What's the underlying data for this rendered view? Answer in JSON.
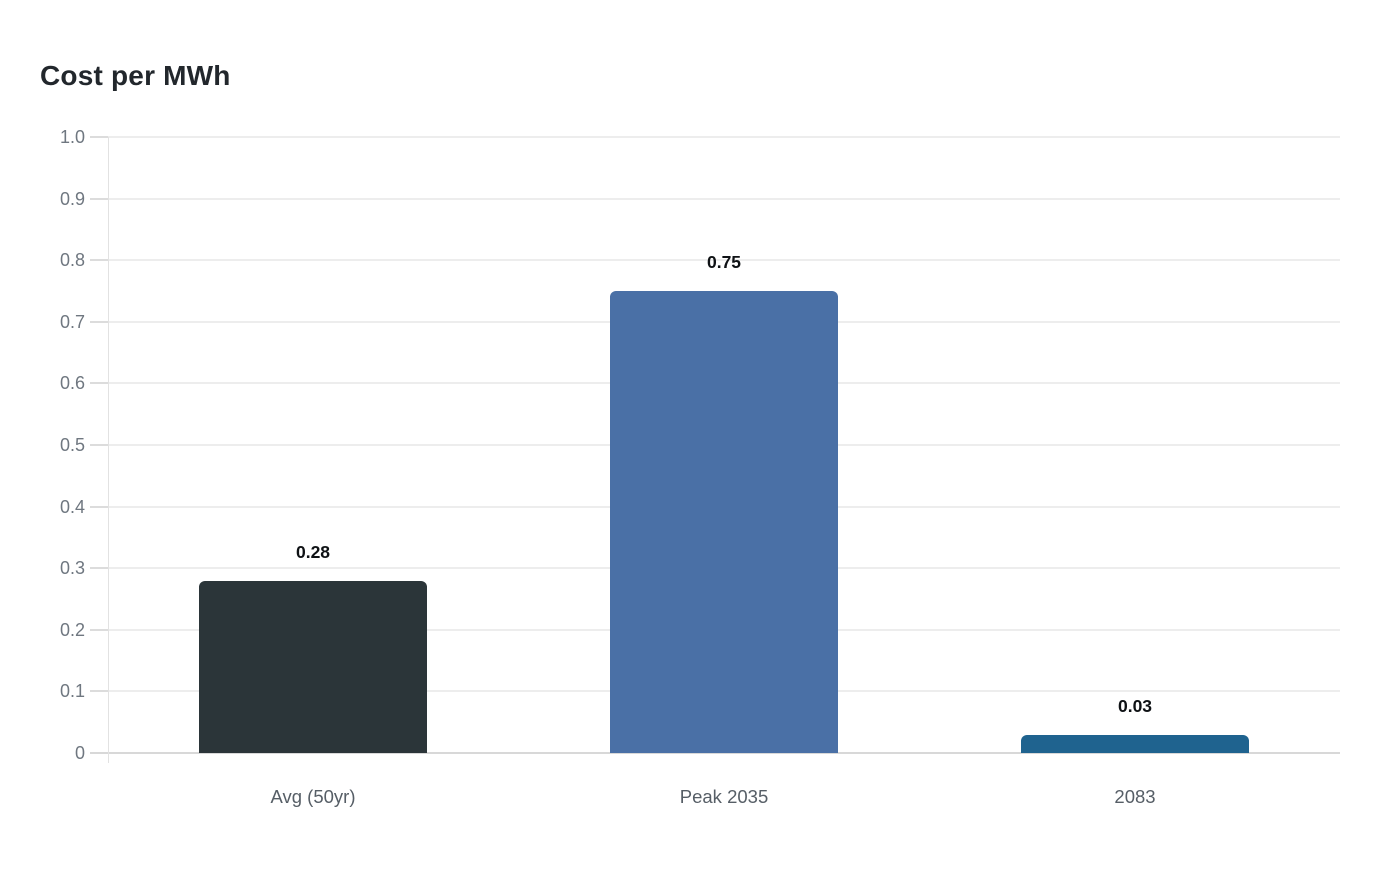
{
  "page": {
    "background_color": "#ffffff"
  },
  "chart_data": {
    "type": "bar",
    "title": "Cost per MWh",
    "categories": [
      "Avg (50yr)",
      "Peak 2035",
      "2083"
    ],
    "values": [
      0.28,
      0.75,
      0.03
    ],
    "value_labels": [
      "0.28",
      "0.75",
      "0.03"
    ],
    "bar_colors": [
      "#2b3539",
      "#4a70a6",
      "#1f638f"
    ],
    "xlabel": "",
    "ylabel": "",
    "ylim": [
      0,
      1.0
    ],
    "yticks": [
      1.0,
      0.9,
      0.8,
      0.7,
      0.6,
      0.5,
      0.4,
      0.3,
      0.2,
      0.1,
      0
    ],
    "ytick_labels": [
      "1.0",
      "0.9",
      "0.8",
      "0.7",
      "0.6",
      "0.5",
      "0.4",
      "0.3",
      "0.2",
      "0.1",
      "0"
    ],
    "grid": true,
    "legend": false,
    "bar_label_position": "above"
  },
  "style_colors": {
    "title": "#22272c",
    "y_tick_label": "#6f7780",
    "category_label": "#565e66",
    "value_label": "#0f1215",
    "gridline": "#ededed",
    "baseline": "#d8d8d8",
    "axis_line": "#e2e2e2",
    "tick_mark": "#dcdcdc"
  }
}
